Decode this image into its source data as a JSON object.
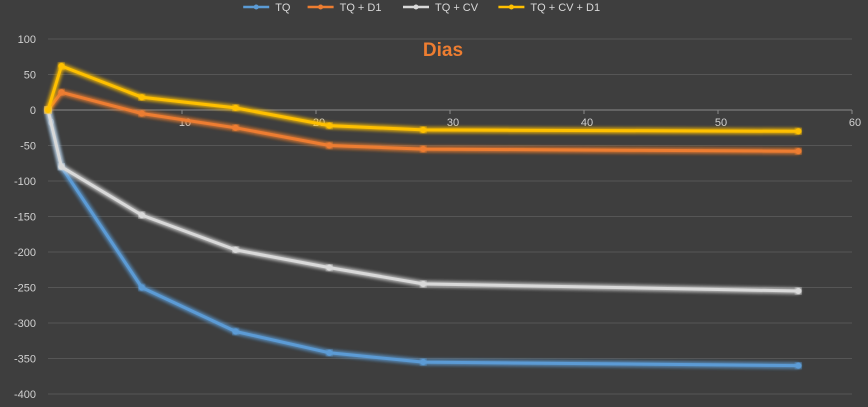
{
  "chart_data": {
    "type": "line",
    "title": "Dias",
    "xlabel": "",
    "ylabel": "",
    "xlim": [
      0,
      60
    ],
    "ylim": [
      -400,
      100
    ],
    "x_ticks": [
      0,
      10,
      20,
      30,
      40,
      50,
      60
    ],
    "y_ticks": [
      100,
      50,
      0,
      -50,
      -100,
      -150,
      -200,
      -250,
      -300,
      -350,
      -400
    ],
    "x_tick_labels": [
      "0",
      "10",
      "20",
      "30",
      "40",
      "50",
      "60"
    ],
    "y_tick_labels": [
      "100",
      "50",
      "0",
      "-50",
      "-100",
      "-150",
      "-200",
      "-250",
      "-300",
      "-350",
      "-400"
    ],
    "grid": true,
    "legend_position": "top",
    "series": [
      {
        "name": "TQ",
        "color": "#5b9bd5",
        "x": [
          0,
          1,
          7,
          14,
          21,
          28,
          56
        ],
        "y": [
          0,
          -80,
          -250,
          -312,
          -342,
          -355,
          -360
        ]
      },
      {
        "name": "TQ + D1",
        "color": "#ed7d31",
        "x": [
          0,
          1,
          7,
          14,
          21,
          28,
          56
        ],
        "y": [
          0,
          25,
          -5,
          -25,
          -50,
          -55,
          -58
        ]
      },
      {
        "name": "TQ + CV",
        "color": "#d9d9d9",
        "x": [
          0,
          1,
          7,
          14,
          21,
          28,
          56
        ],
        "y": [
          0,
          -80,
          -148,
          -197,
          -222,
          -245,
          -255
        ]
      },
      {
        "name": "TQ + CV + D1",
        "color": "#ffc000",
        "x": [
          0,
          1,
          7,
          14,
          21,
          28,
          56
        ],
        "y": [
          0,
          62,
          18,
          3,
          -22,
          -28,
          -30
        ]
      }
    ]
  }
}
